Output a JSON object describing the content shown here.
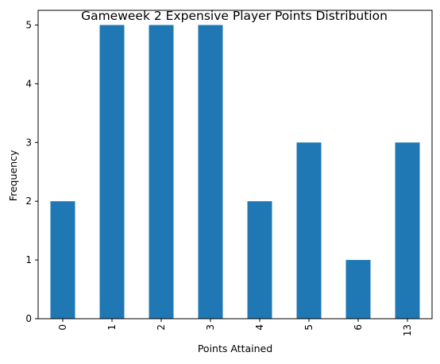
{
  "chart_data": {
    "type": "bar",
    "title": "Gameweek 2 Expensive Player Points Distribution",
    "xlabel": "Points Attained",
    "ylabel": "Frequency",
    "categories": [
      "0",
      "1",
      "2",
      "3",
      "4",
      "5",
      "6",
      "13"
    ],
    "values": [
      2,
      5,
      5,
      5,
      2,
      3,
      1,
      3
    ],
    "ylim": [
      0,
      5.25
    ],
    "yticks": [
      0,
      1,
      2,
      3,
      4,
      5
    ],
    "x_tick_rotation": "vertical",
    "grid": false,
    "legend": "none",
    "bar_color": "#1f77b4"
  }
}
